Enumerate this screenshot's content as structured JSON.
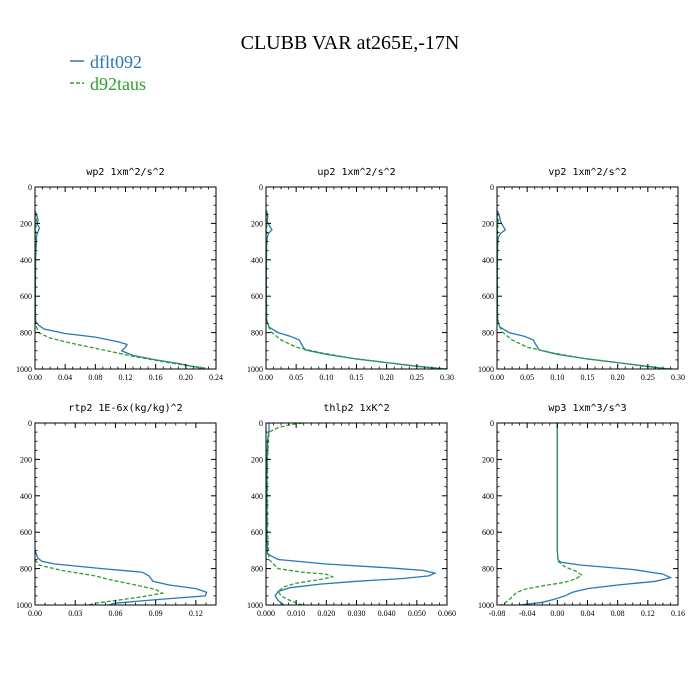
{
  "figure": {
    "title": "CLUBB VAR at265E,-17N",
    "legend": [
      {
        "label": "dflt092",
        "color": "#2878b5",
        "dash": ""
      },
      {
        "label": "d92taus",
        "color": "#2ca02c",
        "dash": "4,2"
      }
    ]
  },
  "chart_data": [
    {
      "type": "line",
      "title": "wp2   1xm^2/s^2",
      "xlim": [
        0,
        0.24
      ],
      "ylim": [
        0,
        1000
      ],
      "xticks": [
        0,
        0.04,
        0.08,
        0.12,
        0.16,
        0.2,
        0.24
      ],
      "xtick_labels": [
        "0.00",
        "0.04",
        "0.08",
        "0.12",
        "0.16",
        "0.20",
        "0.24"
      ],
      "yticks": [
        0,
        200,
        400,
        600,
        800,
        1000
      ],
      "ytick_labels": [
        "0",
        "200",
        "400",
        "600",
        "800",
        "1000"
      ],
      "series": [
        {
          "name": "dflt092",
          "points": [
            [
              0.0,
              130
            ],
            [
              0.002,
              150
            ],
            [
              0.004,
              180
            ],
            [
              0.003,
              205
            ],
            [
              0.006,
              225
            ],
            [
              0.004,
              245
            ],
            [
              0.002,
              270
            ],
            [
              0.002,
              300
            ],
            [
              0.001,
              350
            ],
            [
              0.0005,
              500
            ],
            [
              0.0005,
              700
            ],
            [
              0.001,
              740
            ],
            [
              0.005,
              760
            ],
            [
              0.012,
              780
            ],
            [
              0.04,
              805
            ],
            [
              0.08,
              825
            ],
            [
              0.11,
              850
            ],
            [
              0.122,
              865
            ],
            [
              0.12,
              880
            ],
            [
              0.115,
              900
            ],
            [
              0.13,
              925
            ],
            [
              0.16,
              950
            ],
            [
              0.19,
              970
            ],
            [
              0.215,
              990
            ],
            [
              0.22,
              1000
            ]
          ]
        },
        {
          "name": "d92taus",
          "points": [
            [
              0.0,
              140
            ],
            [
              0.001,
              160
            ],
            [
              0.002,
              190
            ],
            [
              0.001,
              220
            ],
            [
              0.0005,
              300
            ],
            [
              0.0005,
              500
            ],
            [
              0.0005,
              700
            ],
            [
              0.001,
              760
            ],
            [
              0.005,
              800
            ],
            [
              0.02,
              830
            ],
            [
              0.05,
              860
            ],
            [
              0.09,
              895
            ],
            [
              0.13,
              930
            ],
            [
              0.17,
              960
            ],
            [
              0.2,
              980
            ],
            [
              0.225,
              995
            ],
            [
              0.225,
              1000
            ]
          ]
        }
      ]
    },
    {
      "type": "line",
      "title": "up2   1xm^2/s^2",
      "xlim": [
        0,
        0.3
      ],
      "ylim": [
        0,
        1000
      ],
      "xticks": [
        0,
        0.05,
        0.1,
        0.15,
        0.2,
        0.25,
        0.3
      ],
      "xtick_labels": [
        "0.00",
        "0.05",
        "0.10",
        "0.15",
        "0.20",
        "0.25",
        "0.30"
      ],
      "yticks": [
        0,
        200,
        400,
        600,
        800,
        1000
      ],
      "ytick_labels": [
        "0",
        "200",
        "400",
        "600",
        "800",
        "1000"
      ],
      "series": [
        {
          "name": "dflt092",
          "points": [
            [
              0.001,
              130
            ],
            [
              0.003,
              160
            ],
            [
              0.002,
              190
            ],
            [
              0.006,
              215
            ],
            [
              0.01,
              235
            ],
            [
              0.004,
              255
            ],
            [
              0.002,
              280
            ],
            [
              0.001,
              330
            ],
            [
              0.0005,
              500
            ],
            [
              0.001,
              730
            ],
            [
              0.005,
              770
            ],
            [
              0.02,
              800
            ],
            [
              0.04,
              820
            ],
            [
              0.055,
              840
            ],
            [
              0.06,
              870
            ],
            [
              0.065,
              895
            ],
            [
              0.1,
              920
            ],
            [
              0.15,
              945
            ],
            [
              0.2,
              965
            ],
            [
              0.25,
              985
            ],
            [
              0.29,
              998
            ],
            [
              0.3,
              1000
            ]
          ]
        },
        {
          "name": "d92taus",
          "points": [
            [
              0.0,
              140
            ],
            [
              0.002,
              180
            ],
            [
              0.001,
              230
            ],
            [
              0.0005,
              350
            ],
            [
              0.0005,
              700
            ],
            [
              0.003,
              760
            ],
            [
              0.01,
              800
            ],
            [
              0.025,
              840
            ],
            [
              0.05,
              880
            ],
            [
              0.09,
              910
            ],
            [
              0.14,
              940
            ],
            [
              0.2,
              965
            ],
            [
              0.26,
              988
            ],
            [
              0.3,
              1000
            ]
          ]
        }
      ]
    },
    {
      "type": "line",
      "title": "vp2   1xm^2/s^2",
      "xlim": [
        0,
        0.3
      ],
      "ylim": [
        0,
        1000
      ],
      "xticks": [
        0,
        0.05,
        0.1,
        0.15,
        0.2,
        0.25,
        0.3
      ],
      "xtick_labels": [
        "0.00",
        "0.05",
        "0.10",
        "0.15",
        "0.20",
        "0.25",
        "0.30"
      ],
      "yticks": [
        0,
        200,
        400,
        600,
        800,
        1000
      ],
      "ytick_labels": [
        "0",
        "200",
        "400",
        "600",
        "800",
        "1000"
      ],
      "series": [
        {
          "name": "dflt092",
          "points": [
            [
              0.001,
              130
            ],
            [
              0.004,
              160
            ],
            [
              0.006,
              190
            ],
            [
              0.01,
              215
            ],
            [
              0.014,
              235
            ],
            [
              0.006,
              255
            ],
            [
              0.002,
              280
            ],
            [
              0.001,
              330
            ],
            [
              0.0005,
              500
            ],
            [
              0.001,
              730
            ],
            [
              0.005,
              770
            ],
            [
              0.02,
              800
            ],
            [
              0.045,
              820
            ],
            [
              0.06,
              840
            ],
            [
              0.065,
              870
            ],
            [
              0.07,
              895
            ],
            [
              0.1,
              920
            ],
            [
              0.15,
              945
            ],
            [
              0.2,
              965
            ],
            [
              0.25,
              985
            ],
            [
              0.28,
              998
            ],
            [
              0.29,
              1000
            ]
          ]
        },
        {
          "name": "d92taus",
          "points": [
            [
              0.0,
              140
            ],
            [
              0.002,
              180
            ],
            [
              0.001,
              230
            ],
            [
              0.0005,
              350
            ],
            [
              0.0005,
              700
            ],
            [
              0.003,
              760
            ],
            [
              0.01,
              800
            ],
            [
              0.025,
              840
            ],
            [
              0.05,
              880
            ],
            [
              0.09,
              910
            ],
            [
              0.14,
              940
            ],
            [
              0.2,
              965
            ],
            [
              0.25,
              988
            ],
            [
              0.28,
              1000
            ]
          ]
        }
      ]
    },
    {
      "type": "line",
      "title": "rtp2   1E-6x(kg/kg)^2",
      "xlim": [
        0,
        0.135
      ],
      "ylim": [
        0,
        1000
      ],
      "xticks": [
        0,
        0.03,
        0.06,
        0.09,
        0.12
      ],
      "xtick_labels": [
        "0.00",
        "0.03",
        "0.06",
        "0.09",
        "0.12"
      ],
      "yticks": [
        0,
        200,
        400,
        600,
        800,
        1000
      ],
      "ytick_labels": [
        "0",
        "200",
        "400",
        "600",
        "800",
        "1000"
      ],
      "series": [
        {
          "name": "dflt092",
          "points": [
            [
              0.0,
              700
            ],
            [
              0.002,
              740
            ],
            [
              0.005,
              760
            ],
            [
              0.015,
              775
            ],
            [
              0.05,
              800
            ],
            [
              0.08,
              820
            ],
            [
              0.085,
              840
            ],
            [
              0.088,
              870
            ],
            [
              0.1,
              890
            ],
            [
              0.12,
              910
            ],
            [
              0.128,
              930
            ],
            [
              0.127,
              950
            ],
            [
              0.1,
              965
            ],
            [
              0.075,
              980
            ],
            [
              0.06,
              990
            ],
            [
              0.055,
              1000
            ]
          ]
        },
        {
          "name": "d92taus",
          "points": [
            [
              0.0,
              750
            ],
            [
              0.003,
              780
            ],
            [
              0.02,
              810
            ],
            [
              0.045,
              840
            ],
            [
              0.055,
              860
            ],
            [
              0.075,
              890
            ],
            [
              0.09,
              915
            ],
            [
              0.095,
              935
            ],
            [
              0.08,
              955
            ],
            [
              0.06,
              975
            ],
            [
              0.045,
              990
            ],
            [
              0.04,
              1000
            ]
          ]
        }
      ]
    },
    {
      "type": "line",
      "title": "thlp2   1xK^2",
      "xlim": [
        0,
        0.06
      ],
      "ylim": [
        0,
        1000
      ],
      "xticks": [
        0,
        0.01,
        0.02,
        0.03,
        0.04,
        0.05,
        0.06
      ],
      "xtick_labels": [
        "0.000",
        "0.010",
        "0.020",
        "0.030",
        "0.040",
        "0.050",
        "0.060"
      ],
      "yticks": [
        0,
        200,
        400,
        600,
        800,
        1000
      ],
      "ytick_labels": [
        "0",
        "200",
        "400",
        "600",
        "800",
        "1000"
      ],
      "series": [
        {
          "name": "dflt092",
          "points": [
            [
              0.001,
              0
            ],
            [
              0.001,
              40
            ],
            [
              0.0005,
              100
            ],
            [
              0.0003,
              300
            ],
            [
              0.0003,
              600
            ],
            [
              0.0005,
              720
            ],
            [
              0.004,
              750
            ],
            [
              0.02,
              775
            ],
            [
              0.04,
              795
            ],
            [
              0.052,
              810
            ],
            [
              0.056,
              825
            ],
            [
              0.054,
              840
            ],
            [
              0.045,
              855
            ],
            [
              0.03,
              870
            ],
            [
              0.018,
              885
            ],
            [
              0.008,
              905
            ],
            [
              0.004,
              925
            ],
            [
              0.003,
              950
            ],
            [
              0.004,
              975
            ],
            [
              0.006,
              1000
            ]
          ]
        },
        {
          "name": "d92taus",
          "points": [
            [
              0.012,
              0
            ],
            [
              0.008,
              10
            ],
            [
              0.004,
              25
            ],
            [
              0.001,
              50
            ],
            [
              0.0005,
              200
            ],
            [
              0.0005,
              600
            ],
            [
              0.001,
              750
            ],
            [
              0.004,
              800
            ],
            [
              0.012,
              820
            ],
            [
              0.02,
              830
            ],
            [
              0.022,
              845
            ],
            [
              0.018,
              860
            ],
            [
              0.01,
              880
            ],
            [
              0.006,
              900
            ],
            [
              0.004,
              925
            ],
            [
              0.005,
              950
            ],
            [
              0.008,
              975
            ],
            [
              0.012,
              1000
            ]
          ]
        }
      ]
    },
    {
      "type": "line",
      "title": "wp3   1xm^3/s^3",
      "xlim": [
        -0.08,
        0.16
      ],
      "ylim": [
        0,
        1000
      ],
      "xticks": [
        -0.08,
        -0.04,
        0,
        0.04,
        0.08,
        0.12,
        0.16
      ],
      "xtick_labels": [
        "-0.08",
        "-0.04",
        "0.00",
        "0.04",
        "0.08",
        "0.12",
        "0.16"
      ],
      "yticks": [
        0,
        200,
        400,
        600,
        800,
        1000
      ],
      "ytick_labels": [
        "0",
        "200",
        "400",
        "600",
        "800",
        "1000"
      ],
      "series": [
        {
          "name": "dflt092",
          "points": [
            [
              0.0,
              0
            ],
            [
              0.0,
              700
            ],
            [
              0.001,
              750
            ],
            [
              0.004,
              765
            ],
            [
              0.03,
              780
            ],
            [
              0.1,
              805
            ],
            [
              0.14,
              830
            ],
            [
              0.15,
              850
            ],
            [
              0.13,
              870
            ],
            [
              0.08,
              890
            ],
            [
              0.04,
              910
            ],
            [
              0.02,
              930
            ],
            [
              0.01,
              950
            ],
            [
              -0.005,
              970
            ],
            [
              -0.02,
              985
            ],
            [
              -0.04,
              995
            ],
            [
              -0.05,
              1000
            ]
          ]
        },
        {
          "name": "d92taus",
          "points": [
            [
              0.0,
              0
            ],
            [
              0.0,
              100
            ],
            [
              0.0,
              700
            ],
            [
              0.001,
              760
            ],
            [
              0.01,
              790
            ],
            [
              0.025,
              815
            ],
            [
              0.032,
              835
            ],
            [
              0.025,
              855
            ],
            [
              0.01,
              875
            ],
            [
              -0.02,
              895
            ],
            [
              -0.045,
              915
            ],
            [
              -0.055,
              935
            ],
            [
              -0.06,
              955
            ],
            [
              -0.065,
              975
            ],
            [
              -0.07,
              990
            ],
            [
              -0.075,
              1000
            ]
          ]
        }
      ]
    }
  ]
}
